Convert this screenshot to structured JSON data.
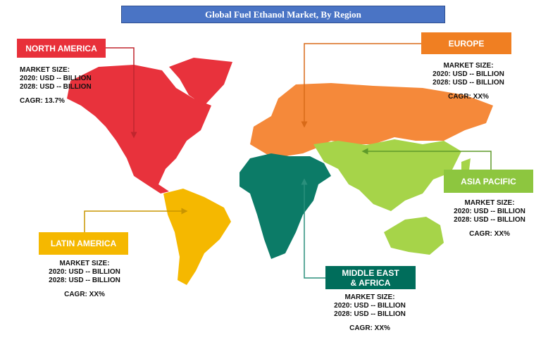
{
  "title": "Global Fuel Ethanol Market, By Region",
  "regions": [
    {
      "name": "NORTH AMERICA",
      "market_size": "MARKET SIZE:",
      "size_2020": "2020: USD -- BILLION",
      "size_2028": "2028: USD -- BILLION",
      "cagr": "CAGR: 13.7%"
    },
    {
      "name": "EUROPE",
      "market_size": "MARKET SIZE:",
      "size_2020": "2020: USD -- BILLION",
      "size_2028": "2028: USD -- BILLION",
      "cagr": "CAGR: XX%"
    },
    {
      "name": "ASIA PACIFIC",
      "market_size": "MARKET SIZE:",
      "size_2020": "2020: USD -- BILLION",
      "size_2028": "2028: USD -- BILLION",
      "cagr": "CAGR: XX%"
    },
    {
      "name": "LATIN AMERICA",
      "market_size": "MARKET SIZE:",
      "size_2020": "2020: USD -- BILLION",
      "size_2028": "2028: USD -- BILLION",
      "cagr": "CAGR: XX%"
    },
    {
      "name": "MIDDLE EAST & AFRICA",
      "market_size": "MARKET SIZE:",
      "size_2020": "2020: USD -- BILLION",
      "size_2028": "2028: USD -- BILLION",
      "cagr": "CAGR: XX%"
    }
  ]
}
